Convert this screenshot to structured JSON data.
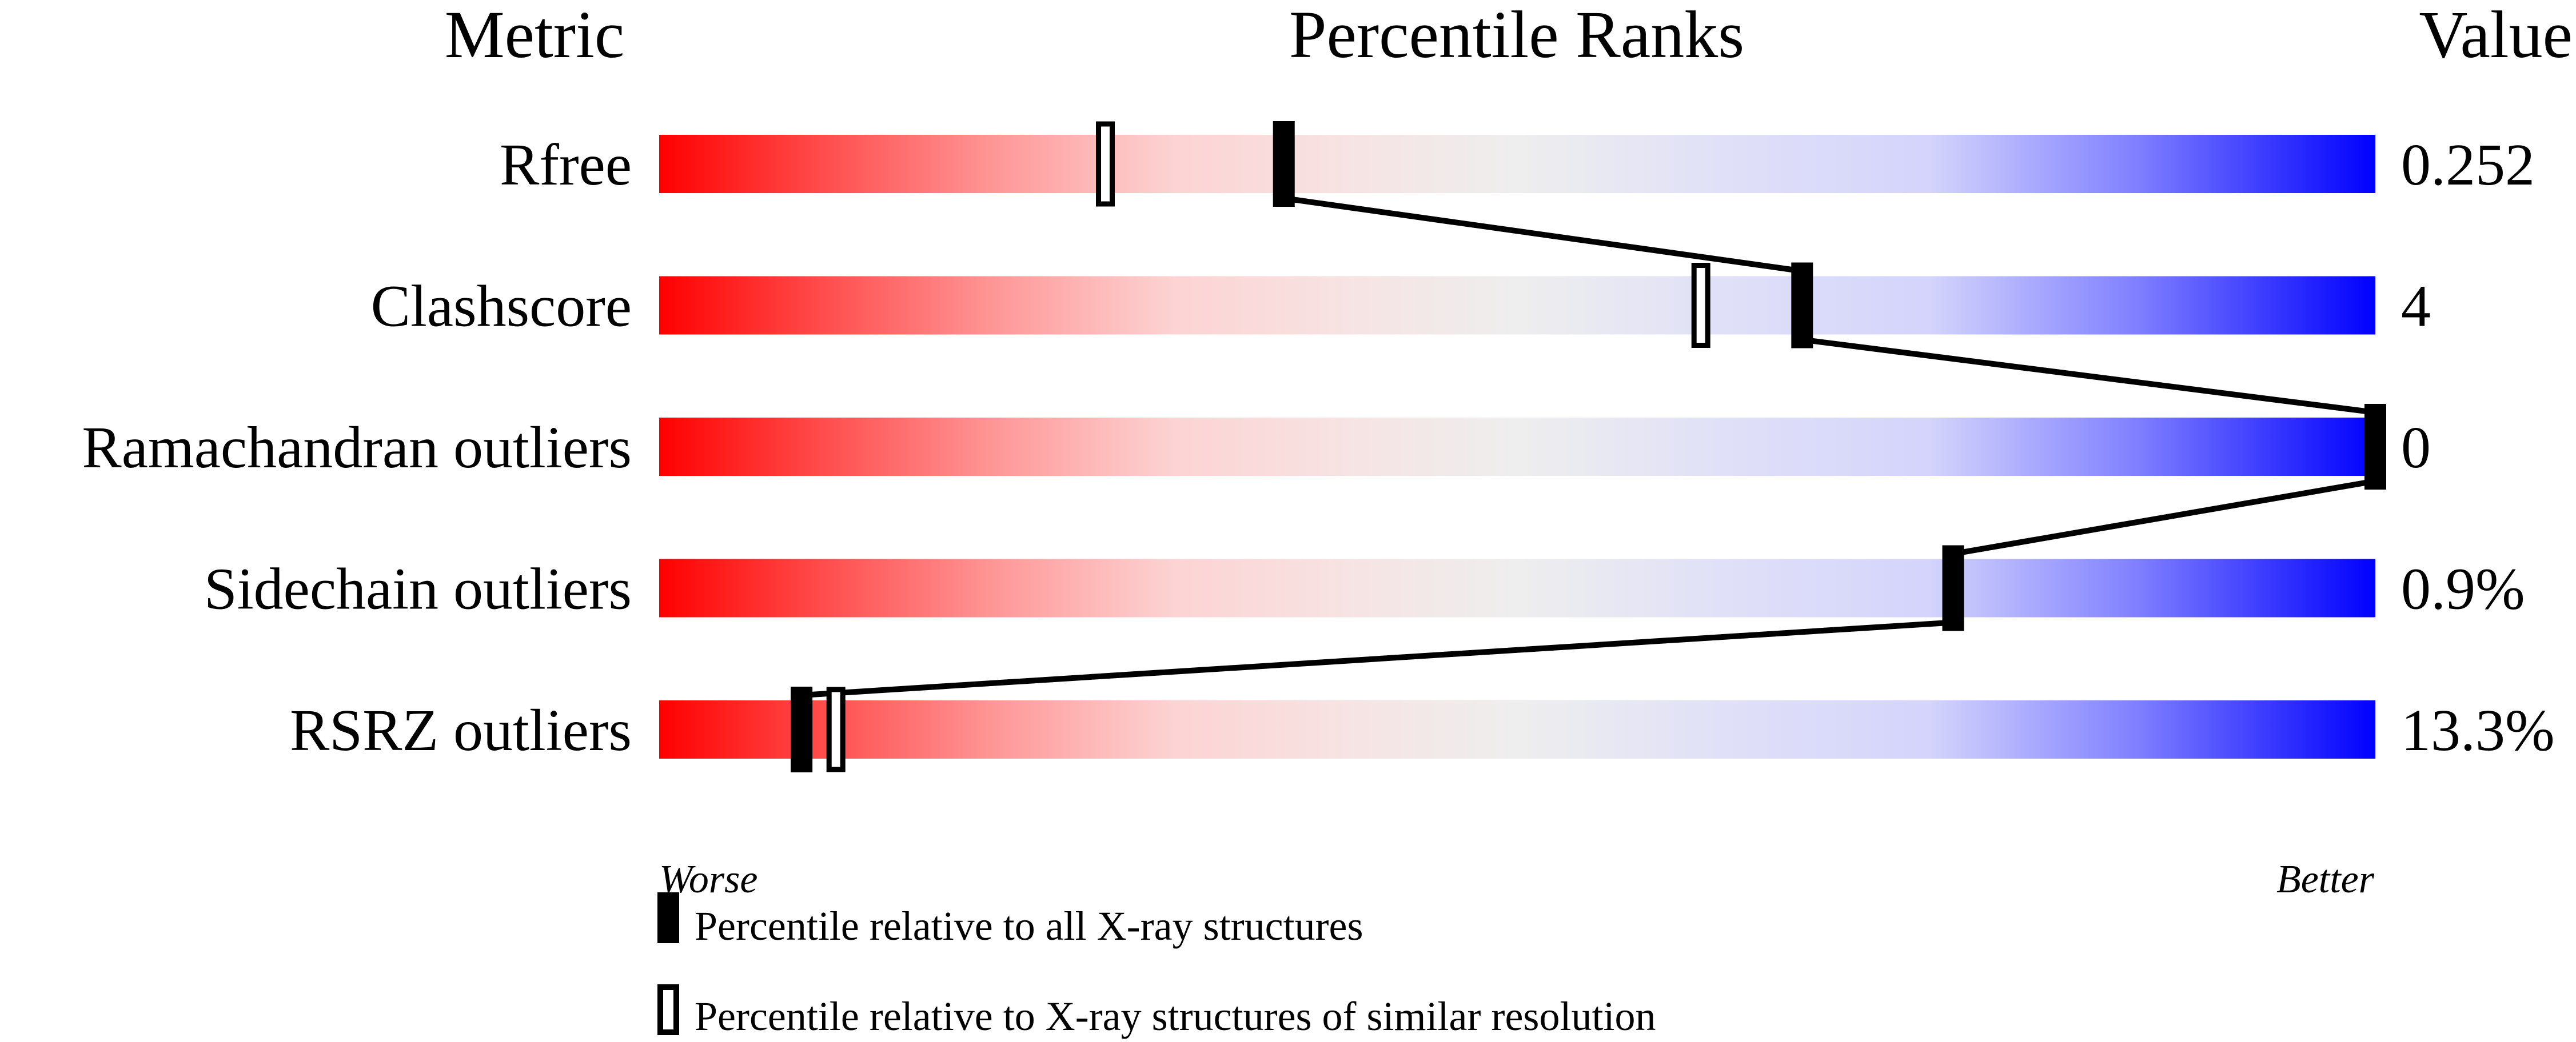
{
  "chart_data": {
    "type": "bar",
    "headers": {
      "metric": "Metric",
      "ranks": "Percentile Ranks",
      "value": "Value"
    },
    "axis": {
      "min_label": "Worse",
      "max_label": "Better",
      "xlim": [
        0,
        100
      ]
    },
    "metrics": [
      {
        "name": "Rfree",
        "value": "0.252",
        "percentile_all": 36.4,
        "percentile_similar": 26.0
      },
      {
        "name": "Clashscore",
        "value": "4",
        "percentile_all": 66.6,
        "percentile_similar": 60.7
      },
      {
        "name": "Ramachandran outliers",
        "value": "0",
        "percentile_all": 100,
        "percentile_similar": 100
      },
      {
        "name": "Sidechain outliers",
        "value": "0.9%",
        "percentile_all": 75.4,
        "percentile_similar": 75.4
      },
      {
        "name": "RSRZ outliers",
        "value": "13.3%",
        "percentile_all": 8.3,
        "percentile_similar": 10.3
      }
    ],
    "legend": {
      "all": "Percentile relative to all X-ray structures",
      "similar": "Percentile relative to X-ray structures of similar resolution"
    },
    "colors": {
      "worse": "#ff0000",
      "middle": "#eeeeee",
      "better": "#0000ff",
      "marker": "#000000"
    }
  }
}
